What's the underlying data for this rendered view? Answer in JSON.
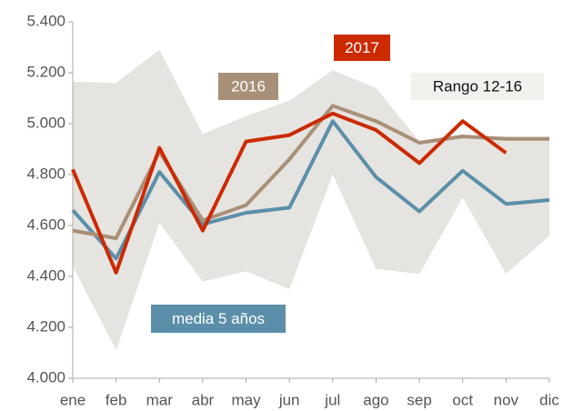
{
  "chart_data": {
    "type": "line",
    "categories": [
      "ene",
      "feb",
      "mar",
      "abr",
      "may",
      "jun",
      "jul",
      "ago",
      "sep",
      "oct",
      "nov",
      "dic"
    ],
    "ylim": [
      4000,
      5400
    ],
    "yticks": [
      {
        "value": 4000,
        "label": "4.000"
      },
      {
        "value": 4200,
        "label": "4.200"
      },
      {
        "value": 4400,
        "label": "4.400"
      },
      {
        "value": 4600,
        "label": "4.600"
      },
      {
        "value": 4800,
        "label": "4.800"
      },
      {
        "value": 5000,
        "label": "5.000"
      },
      {
        "value": 5200,
        "label": "5.200"
      },
      {
        "value": 5400,
        "label": "5.400"
      }
    ],
    "band": {
      "name": "Rango 12-16",
      "color": "#e6e4e0",
      "upper": [
        5165,
        5160,
        5290,
        4960,
        5030,
        5090,
        5210,
        5140,
        4930,
        4950,
        4950,
        4950
      ],
      "lower": [
        4440,
        4110,
        4610,
        4380,
        4420,
        4350,
        4800,
        4430,
        4410,
        4710,
        4410,
        4560
      ]
    },
    "series": [
      {
        "name": "media 5 años",
        "color": "#5b8fa9",
        "values": [
          4660,
          4470,
          4810,
          4605,
          4650,
          4670,
          5010,
          4790,
          4655,
          4815,
          4685,
          4700
        ]
      },
      {
        "name": "2016",
        "color": "#a89078",
        "values": [
          4580,
          4550,
          4890,
          4620,
          4680,
          4860,
          5070,
          5010,
          4925,
          4950,
          4940,
          4940
        ]
      },
      {
        "name": "2017",
        "color": "#cc2a00",
        "values": [
          4820,
          4415,
          4905,
          4580,
          4930,
          4955,
          5040,
          4975,
          4845,
          5010,
          4885,
          null
        ]
      }
    ]
  }
}
